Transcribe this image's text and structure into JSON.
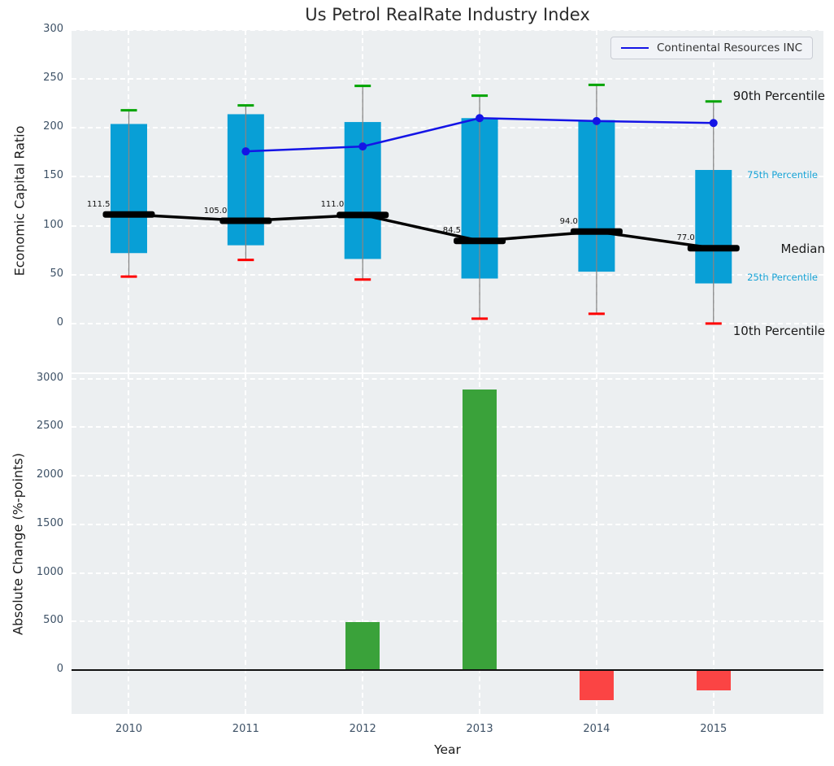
{
  "title": "Us Petrol RealRate Industry Index",
  "legend": {
    "items": [
      {
        "label": "Continental Resources INC",
        "color": "#1414e6"
      }
    ]
  },
  "colors": {
    "box_fill": "#089fd6",
    "whisker": "#858585",
    "p90_cap": "#00a400",
    "p10_cap": "#fe0000",
    "median_line": "#000000",
    "company_line": "#1414e6",
    "bar_positive": "#3aa23a",
    "bar_negative": "#fb4444",
    "panel_bg": "#eceff1",
    "grid": "#ffffff",
    "tick_label": "#3d5166",
    "annotation_accent": "#17a3d6",
    "zero_line": "#111111"
  },
  "chart_data": [
    {
      "type": "box",
      "title": "Us Petrol RealRate Industry Index",
      "ylabel": "Economic Capital Ratio",
      "grid": true,
      "legend_position": "upper right",
      "ylim": [
        -50,
        300
      ],
      "xlim": [
        -0.49,
        5.94
      ],
      "yticks": [
        0,
        50,
        100,
        150,
        200,
        250,
        300
      ],
      "categories": [
        "2010",
        "2011",
        "2012",
        "2013",
        "2014",
        "2015"
      ],
      "series": [
        {
          "name": "90th Percentile",
          "values": [
            218,
            223,
            243,
            233,
            244,
            227
          ]
        },
        {
          "name": "75th Percentile",
          "values": [
            204,
            214,
            206,
            210,
            208,
            157
          ]
        },
        {
          "name": "Median",
          "values": [
            111.5,
            105.0,
            111.0,
            84.5,
            94.0,
            77.0
          ]
        },
        {
          "name": "25th Percentile",
          "values": [
            72,
            80,
            66,
            46,
            53,
            41
          ]
        },
        {
          "name": "10th Percentile",
          "values": [
            48,
            65,
            45,
            5,
            10,
            0
          ]
        },
        {
          "name": "Continental Resources INC",
          "type": "line",
          "x": [
            "2011",
            "2012",
            "2013",
            "2014",
            "2015"
          ],
          "values": [
            176,
            181,
            210,
            207,
            205
          ]
        }
      ],
      "median_labels": [
        "111.5",
        "105.0",
        "111.0",
        "84.5",
        "94.0",
        "77.0"
      ],
      "annotations": [
        {
          "text": "90th Percentile",
          "value": 233,
          "style": "large"
        },
        {
          "text": "75th Percentile",
          "value": 152,
          "style": "small"
        },
        {
          "text": "Median",
          "value": 76,
          "style": "large"
        },
        {
          "text": "25th Percentile",
          "value": 47,
          "style": "small"
        },
        {
          "text": "10th Percentile",
          "value": -8,
          "style": "large"
        }
      ]
    },
    {
      "type": "bar",
      "ylabel": "Absolute Change (%-points)",
      "xlabel": "Year",
      "grid": true,
      "ylim": [
        -452,
        3048
      ],
      "xlim": [
        -0.49,
        5.94
      ],
      "yticks": [
        0,
        500,
        1000,
        1500,
        2000,
        2500,
        3000
      ],
      "categories": [
        "2010",
        "2011",
        "2012",
        "2013",
        "2014",
        "2015"
      ],
      "values": [
        0,
        0,
        490,
        2885,
        -300,
        -200
      ]
    }
  ]
}
